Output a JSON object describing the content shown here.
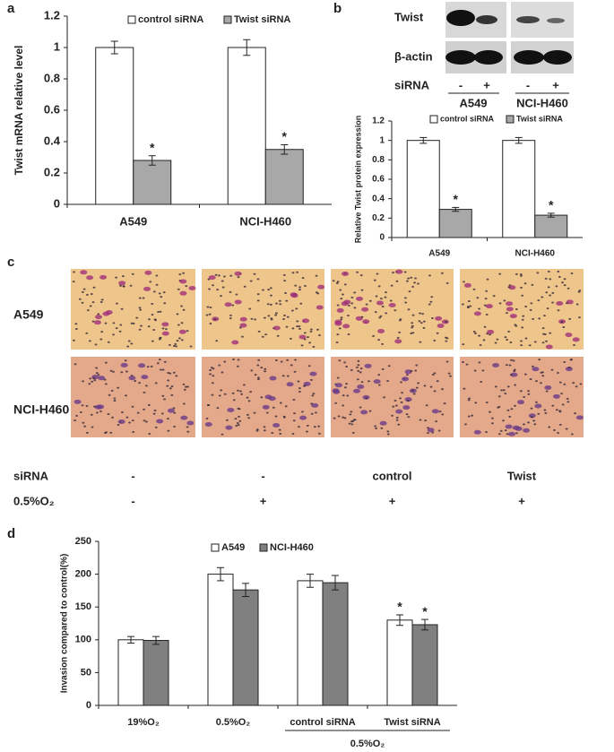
{
  "chart_data": [
    {
      "type": "bar",
      "panel_label": "a",
      "y_label": "Twist mRNA relative level",
      "categories": [
        "A549",
        "NCI-H460"
      ],
      "series": [
        {
          "name": "control siRNA",
          "color": "#ffffff",
          "values": [
            1,
            1
          ],
          "errors": [
            0.04,
            0.05
          ]
        },
        {
          "name": "Twist siRNA",
          "color": "#a8a8a8",
          "values": [
            0.28,
            0.35
          ],
          "errors": [
            0.03,
            0.03
          ],
          "annotations": [
            "*",
            "*"
          ]
        }
      ],
      "ylim": [
        0,
        1.2
      ],
      "yticks": [
        0,
        0.2,
        0.4,
        0.6,
        0.8,
        1,
        1.2
      ]
    },
    {
      "type": "bar",
      "y_label": "Relative Twist protein expression",
      "categories": [
        "A549",
        "NCI-H460"
      ],
      "series": [
        {
          "name": "control siRNA",
          "color": "#ffffff",
          "values": [
            1,
            1
          ],
          "errors": [
            0.03,
            0.03
          ]
        },
        {
          "name": "Twist siRNA",
          "color": "#a8a8a8",
          "values": [
            0.29,
            0.23
          ],
          "errors": [
            0.02,
            0.02
          ],
          "annotations": [
            "*",
            "*"
          ]
        }
      ],
      "ylim": [
        0,
        1.2
      ],
      "yticks": [
        0,
        0.2,
        0.4,
        0.6,
        0.8,
        1,
        1.2
      ]
    },
    {
      "type": "bar",
      "panel_label": "d",
      "y_label": "Invasion compared to control(%)",
      "categories": [
        "19%O₂",
        "0.5%O₂",
        "control siRNA",
        "Twist siRNA"
      ],
      "group_label": "0.5%O₂",
      "series": [
        {
          "name": "A549",
          "color": "#ffffff",
          "values": [
            100,
            200,
            190,
            130
          ],
          "errors": [
            5,
            10,
            10,
            8
          ],
          "annotations": [
            null,
            null,
            null,
            "*"
          ]
        },
        {
          "name": "NCI-H460",
          "color": "#808080",
          "values": [
            99,
            176,
            187,
            123
          ],
          "errors": [
            6,
            10,
            11,
            8
          ],
          "annotations": [
            null,
            null,
            null,
            "*"
          ]
        }
      ],
      "ylim": [
        0,
        250
      ],
      "yticks": [
        0,
        50,
        100,
        150,
        200,
        250
      ]
    }
  ],
  "blot": {
    "panel_label": "b",
    "rows": [
      "Twist",
      "β-actin"
    ],
    "sirna_label": "siRNA",
    "lanes": [
      "-",
      "+",
      "-",
      "+"
    ],
    "cell_lines": [
      "A549",
      "NCI-H460"
    ]
  },
  "micrographs": {
    "panel_label": "c",
    "rows": [
      "A549",
      "NCI-H460"
    ],
    "conditions": [
      {
        "label": "siRNA",
        "values": [
          "-",
          "-",
          "control",
          "Twist"
        ]
      },
      {
        "label": "0.5%O₂",
        "values": [
          "-",
          "+",
          "+",
          "+"
        ]
      }
    ]
  }
}
